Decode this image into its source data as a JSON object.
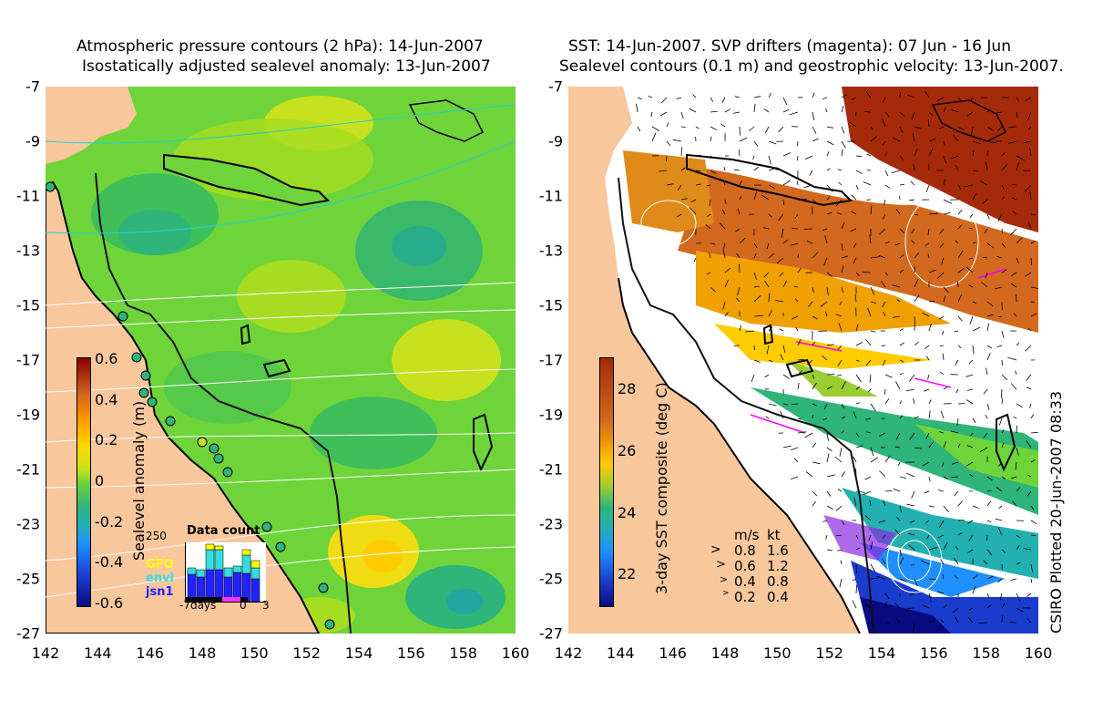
{
  "left_panel": {
    "title_line1": "Atmospheric pressure contours (2 hPa): 14-Jun-2007",
    "title_line2": "Isostatically adjusted sealevel anomaly: 13-Jun-2007",
    "colorbar": {
      "label": "Sealevel anomaly (m)",
      "ticks": [
        "0.6",
        "0.4",
        "0.2",
        "0",
        "-0.2",
        "-0.4",
        "-0.6"
      ]
    },
    "data_count": {
      "title": "Data count",
      "ymax_label": "250",
      "series": [
        "GFO",
        "envi",
        "jsn1"
      ],
      "series_colors": [
        "#ffff00",
        "#33dddd",
        "#2222ff"
      ],
      "x_labels": [
        "-7days",
        "0",
        "3"
      ]
    }
  },
  "right_panel": {
    "title_line1": "SST: 14-Jun-2007. SVP drifters (magenta): 07 Jun - 16 Jun",
    "title_line2": "Sealevel contours (0.1 m) and geostrophic velocity: 13-Jun-2007.",
    "colorbar": {
      "label": "3-day SST composite (deg C)",
      "ticks": [
        "28",
        "26",
        "24",
        "22"
      ]
    },
    "velocity_legend": {
      "header_ms": "m/s",
      "header_kt": "kt",
      "rows": [
        {
          "ms": "0.8",
          "kt": "1.6"
        },
        {
          "ms": "0.6",
          "kt": "1.2"
        },
        {
          "ms": "0.4",
          "kt": "0.8"
        },
        {
          "ms": "0.2",
          "kt": "0.4"
        }
      ]
    },
    "credit": "CSIRO Plotted 20-Jun-2007 08:33"
  },
  "axes": {
    "x_ticks": [
      "142",
      "144",
      "146",
      "148",
      "150",
      "152",
      "154",
      "156",
      "158",
      "160"
    ],
    "y_ticks": [
      "-7",
      "-9",
      "-11",
      "-13",
      "-15",
      "-17",
      "-19",
      "-21",
      "-23",
      "-25",
      "-27"
    ]
  },
  "colors": {
    "land": "#f8c79c",
    "coast": "#000000",
    "sla_base": "#6fd43a",
    "sst_warm": "#d2691e"
  }
}
